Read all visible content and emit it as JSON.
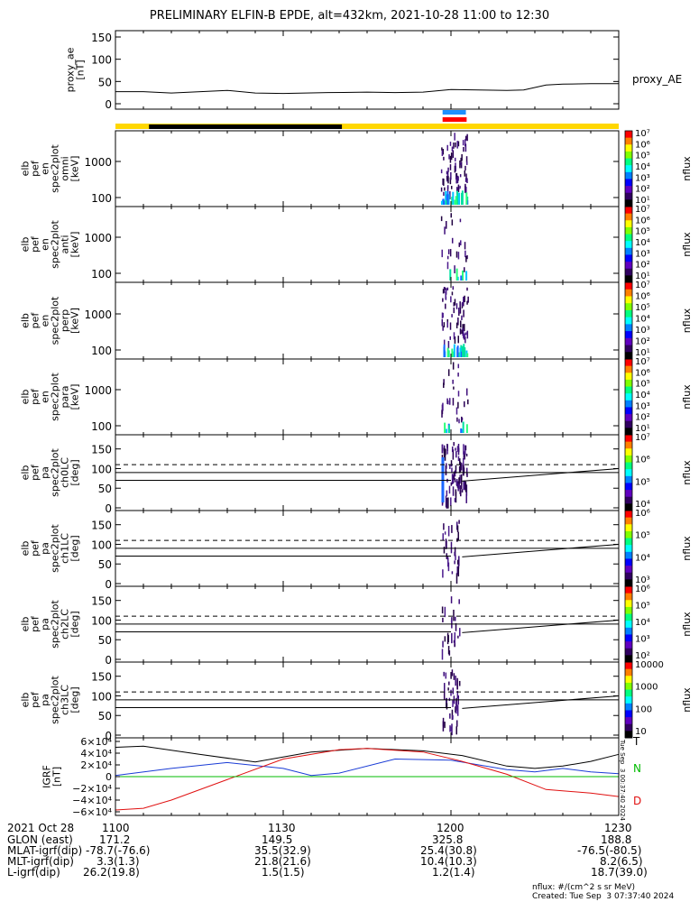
{
  "title": "PRELIMINARY ELFIN-B EPDE, alt=432km, 2021-10-28 11:00 to 12:30",
  "colors": {
    "yellow": "#ffd700",
    "black": "#000000",
    "red": "#ff0000",
    "blue": "#1e90ff",
    "green": "#00bb00"
  },
  "panels": [
    {
      "id": "proxy_ae",
      "ylabel": [
        "proxy_ae",
        "[nT]"
      ],
      "yticks": [
        "150",
        "100",
        "50",
        "0"
      ],
      "right_label": "proxy_AE"
    },
    {
      "id": "en_omni",
      "ylabel": [
        "elb",
        "pef",
        "en",
        "spec2plot",
        "omni",
        "[keV]"
      ],
      "yticks": [
        "1000",
        "100"
      ]
    },
    {
      "id": "en_anti",
      "ylabel": [
        "elb",
        "pef",
        "en",
        "spec2plot",
        "anti",
        "[keV]"
      ],
      "yticks": [
        "1000",
        "100"
      ]
    },
    {
      "id": "en_perp",
      "ylabel": [
        "elb",
        "pef",
        "en",
        "spec2plot",
        "perp",
        "[keV]"
      ],
      "yticks": [
        "1000",
        "100"
      ]
    },
    {
      "id": "en_para",
      "ylabel": [
        "elb",
        "pef",
        "en",
        "spec2plot",
        "para",
        "[keV]"
      ],
      "yticks": [
        "1000",
        "100"
      ]
    },
    {
      "id": "pa_ch0",
      "ylabel": [
        "elb",
        "pef",
        "pa",
        "spec2plot",
        "ch0LC",
        "[deg]"
      ],
      "yticks": [
        "150",
        "100",
        "50",
        "0"
      ]
    },
    {
      "id": "pa_ch1",
      "ylabel": [
        "elb",
        "pef",
        "pa",
        "spec2plot",
        "ch1LC",
        "[deg]"
      ],
      "yticks": [
        "150",
        "100",
        "50",
        "0"
      ]
    },
    {
      "id": "pa_ch2",
      "ylabel": [
        "elb",
        "pef",
        "pa",
        "spec2plot",
        "ch2LC",
        "[deg]"
      ],
      "yticks": [
        "150",
        "100",
        "50",
        "0"
      ]
    },
    {
      "id": "pa_ch3",
      "ylabel": [
        "elb",
        "pef",
        "pa",
        "spec2plot",
        "ch3LC",
        "[deg]"
      ],
      "yticks": [
        "150",
        "100",
        "50",
        "0"
      ]
    },
    {
      "id": "igrf",
      "ylabel": [
        "IGRF",
        "[nT]"
      ],
      "yticks": [
        "6×10⁴",
        "4×10⁴",
        "2×10⁴",
        "0",
        "−2×10⁴",
        "−4×10⁴",
        "−6×10⁴"
      ],
      "series_labels": [
        "T",
        "N",
        "D"
      ]
    }
  ],
  "colorbars": [
    {
      "label": "nflux",
      "ticks": [
        "10⁷",
        "10⁶",
        "10⁵",
        "10⁴",
        "10³",
        "10²",
        "10¹"
      ]
    },
    {
      "label": "nflux",
      "ticks": [
        "10⁷",
        "10⁶",
        "10⁵",
        "10⁴",
        "10³",
        "10²",
        "10¹"
      ]
    },
    {
      "label": "nflux",
      "ticks": [
        "10⁷",
        "10⁶",
        "10⁵",
        "10⁴",
        "10³",
        "10²",
        "10¹"
      ]
    },
    {
      "label": "nflux",
      "ticks": [
        "10⁷",
        "10⁶",
        "10⁵",
        "10⁴",
        "10³",
        "10²",
        "10¹"
      ]
    },
    {
      "label": "nflux",
      "ticks": [
        "10⁷",
        "10⁶",
        "10⁵",
        "10⁴"
      ]
    },
    {
      "label": "nflux",
      "ticks": [
        "10⁶",
        "10⁵",
        "10⁴",
        "10³"
      ]
    },
    {
      "label": "nflux",
      "ticks": [
        "10⁶",
        "10⁵",
        "10⁴",
        "10³",
        "10²"
      ]
    },
    {
      "label": "nflux",
      "ticks": [
        "10000",
        "1000",
        "100",
        "10"
      ]
    }
  ],
  "side_stamp": "Tue Sep  3 00:37:40 2024",
  "ephemeris": {
    "rows": [
      {
        "label": "2021 Oct 28",
        "values": [
          "1100",
          "1130",
          "1200",
          "1230"
        ]
      },
      {
        "label": "GLON (east)",
        "values": [
          "171.2",
          "149.5",
          "325.8",
          "188.8"
        ]
      },
      {
        "label": "MLAT-igrf(dip)",
        "values": [
          "-78.7(-76.6)",
          "35.5(32.9)",
          "25.4(30.8)",
          "-76.5(-80.5)"
        ]
      },
      {
        "label": "MLT-igrf(dip)",
        "values": [
          "3.3(1.3)",
          "21.8(21.6)",
          "10.4(10.3)",
          "8.2(6.5)"
        ]
      },
      {
        "label": "L-igrf(dip)",
        "values": [
          "26.2(19.8)",
          "1.5(1.5)",
          "1.2(1.4)",
          "18.7(39.0)"
        ]
      }
    ]
  },
  "footer": {
    "units": "nflux: #/(cm^2 s sr MeV)",
    "created": "Created: Tue Sep  3 07:37:40 2024"
  },
  "chart_data": {
    "type": "line",
    "title": "PRELIMINARY ELFIN-B EPDE, alt=432km, 2021-10-28 11:00 to 12:30",
    "xlabel": "",
    "xlim": [
      "11:00",
      "12:30"
    ],
    "x_ticks": [
      "1100",
      "1130",
      "1200",
      "1230"
    ],
    "proxy_ae": {
      "ylim": [
        0,
        150
      ],
      "series": [
        {
          "name": "proxy_AE",
          "t": [
            0,
            5,
            10,
            20,
            25,
            30,
            38,
            45,
            50,
            55,
            60,
            65,
            70,
            73,
            77,
            80,
            85,
            90
          ],
          "values": [
            27,
            27,
            24,
            30,
            24,
            23,
            25,
            26,
            25,
            26,
            32,
            31,
            30,
            31,
            42,
            44,
            45,
            45
          ]
        }
      ]
    },
    "status_bars": {
      "top_blue_min": [
        58.5,
        62.5
      ],
      "top_red_min": [
        58.5,
        62.8
      ],
      "black_min": [
        6,
        40.5
      ]
    },
    "pa_reference_lines_deg": {
      "dashed": 110,
      "solid_upper": 90,
      "solid_lower_start": 70,
      "solid_lower_end": 100
    },
    "igrf": {
      "ylim": [
        -60000,
        60000
      ],
      "series": [
        {
          "name": "T",
          "t": [
            0,
            5,
            15,
            25,
            35,
            45,
            55,
            62,
            70,
            75,
            80,
            85,
            90
          ],
          "values": [
            50000,
            52000,
            38000,
            25000,
            42000,
            48000,
            44000,
            36000,
            18000,
            14000,
            18000,
            26000,
            38000
          ]
        },
        {
          "name": "N",
          "t": [
            0,
            10,
            20,
            30,
            35,
            40,
            50,
            60,
            70,
            75,
            80,
            85,
            90
          ],
          "values": [
            2000,
            14000,
            24000,
            14000,
            2000,
            6000,
            30000,
            28000,
            12000,
            8000,
            14000,
            8000,
            5000
          ]
        },
        {
          "name": "D",
          "t": [
            0,
            5,
            10,
            20,
            30,
            40,
            45,
            55,
            62,
            70,
            77,
            85,
            90
          ],
          "values": [
            -57000,
            -54000,
            -40000,
            -5000,
            30000,
            46000,
            48000,
            42000,
            26000,
            4000,
            -22000,
            -28000,
            -34000
          ]
        },
        {
          "name": "zero",
          "t": [
            0,
            90
          ],
          "values": [
            0,
            0
          ]
        }
      ]
    }
  }
}
